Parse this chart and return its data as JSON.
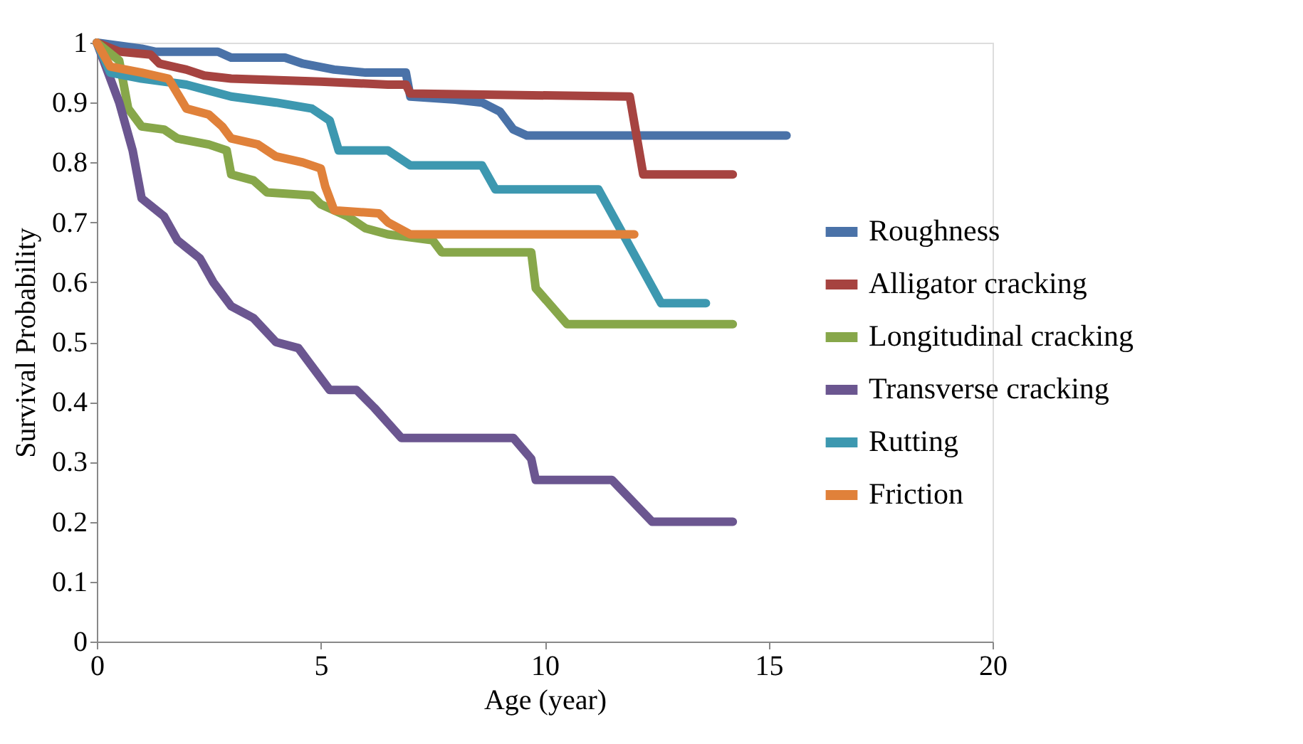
{
  "chart_data": {
    "type": "step",
    "xlabel": "Age (year)",
    "ylabel": "Survival Probability",
    "xlim": [
      0,
      20
    ],
    "xticks": [
      0,
      5,
      10,
      15,
      20
    ],
    "ylim": [
      0,
      1
    ],
    "yticks": [
      0,
      0.1,
      0.2,
      0.3,
      0.4,
      0.5,
      0.6,
      0.7,
      0.8,
      0.9,
      1
    ],
    "grid": false,
    "legend": "right",
    "marker": "none",
    "line_style": "solid",
    "series": [
      {
        "name": "Roughness",
        "color": "#4a72a8",
        "x": [
          0,
          1,
          1.3,
          2.7,
          3,
          4.2,
          4.6,
          5.3,
          6,
          6.9,
          7,
          8,
          8.6,
          9,
          9.3,
          9.6,
          15.4
        ],
        "values": [
          1,
          0.99,
          0.985,
          0.985,
          0.975,
          0.975,
          0.965,
          0.955,
          0.95,
          0.95,
          0.91,
          0.905,
          0.9,
          0.885,
          0.855,
          0.845,
          0.845
        ]
      },
      {
        "name": "Alligator cracking",
        "color": "#a64340",
        "x": [
          0,
          0.5,
          1.2,
          1.4,
          2,
          2.4,
          3,
          5,
          6.5,
          6.9,
          7,
          11.9,
          12.2,
          14.2
        ],
        "values": [
          1,
          0.985,
          0.98,
          0.965,
          0.955,
          0.945,
          0.94,
          0.935,
          0.93,
          0.93,
          0.915,
          0.91,
          0.78,
          0.78
        ]
      },
      {
        "name": "Longitudinal cracking",
        "color": "#87a74a",
        "x": [
          0,
          0.5,
          0.7,
          1,
          1.5,
          1.8,
          2.5,
          2.9,
          3,
          3.5,
          3.8,
          4.8,
          5,
          5.6,
          6,
          6.5,
          7.5,
          7.7,
          9.7,
          9.8,
          10.5,
          14.2
        ],
        "values": [
          1,
          0.97,
          0.89,
          0.86,
          0.855,
          0.84,
          0.83,
          0.82,
          0.78,
          0.77,
          0.75,
          0.745,
          0.73,
          0.71,
          0.69,
          0.68,
          0.67,
          0.65,
          0.65,
          0.59,
          0.53,
          0.53
        ]
      },
      {
        "name": "Transverse cracking",
        "color": "#6b5690",
        "x": [
          0,
          0.2,
          0.5,
          0.8,
          1,
          1.5,
          1.8,
          2.3,
          2.6,
          3,
          3.5,
          4,
          4.5,
          4.9,
          5.2,
          5.8,
          6.2,
          6.8,
          9.3,
          9.7,
          9.8,
          11.5,
          12.4,
          14.2
        ],
        "values": [
          1,
          0.96,
          0.9,
          0.82,
          0.74,
          0.71,
          0.67,
          0.64,
          0.6,
          0.56,
          0.54,
          0.5,
          0.49,
          0.45,
          0.42,
          0.42,
          0.39,
          0.34,
          0.34,
          0.305,
          0.27,
          0.27,
          0.2,
          0.2
        ]
      },
      {
        "name": "Rutting",
        "color": "#3d98b0",
        "x": [
          0,
          0.3,
          1,
          2,
          2.5,
          3,
          4,
          4.8,
          5.2,
          5.4,
          6.5,
          7,
          8.6,
          8.9,
          11.2,
          12.6,
          13.6
        ],
        "values": [
          1,
          0.95,
          0.94,
          0.93,
          0.92,
          0.91,
          0.9,
          0.89,
          0.87,
          0.82,
          0.82,
          0.795,
          0.795,
          0.755,
          0.755,
          0.565,
          0.565
        ]
      },
      {
        "name": "Friction",
        "color": "#e0813a",
        "x": [
          0,
          0.3,
          1,
          1.6,
          2,
          2.5,
          2.8,
          3,
          3.6,
          4,
          4.6,
          5,
          5.1,
          5.3,
          6.3,
          6.5,
          7,
          12
        ],
        "values": [
          1,
          0.96,
          0.95,
          0.94,
          0.89,
          0.88,
          0.86,
          0.84,
          0.83,
          0.81,
          0.8,
          0.79,
          0.76,
          0.72,
          0.715,
          0.7,
          0.68,
          0.68
        ]
      }
    ]
  }
}
